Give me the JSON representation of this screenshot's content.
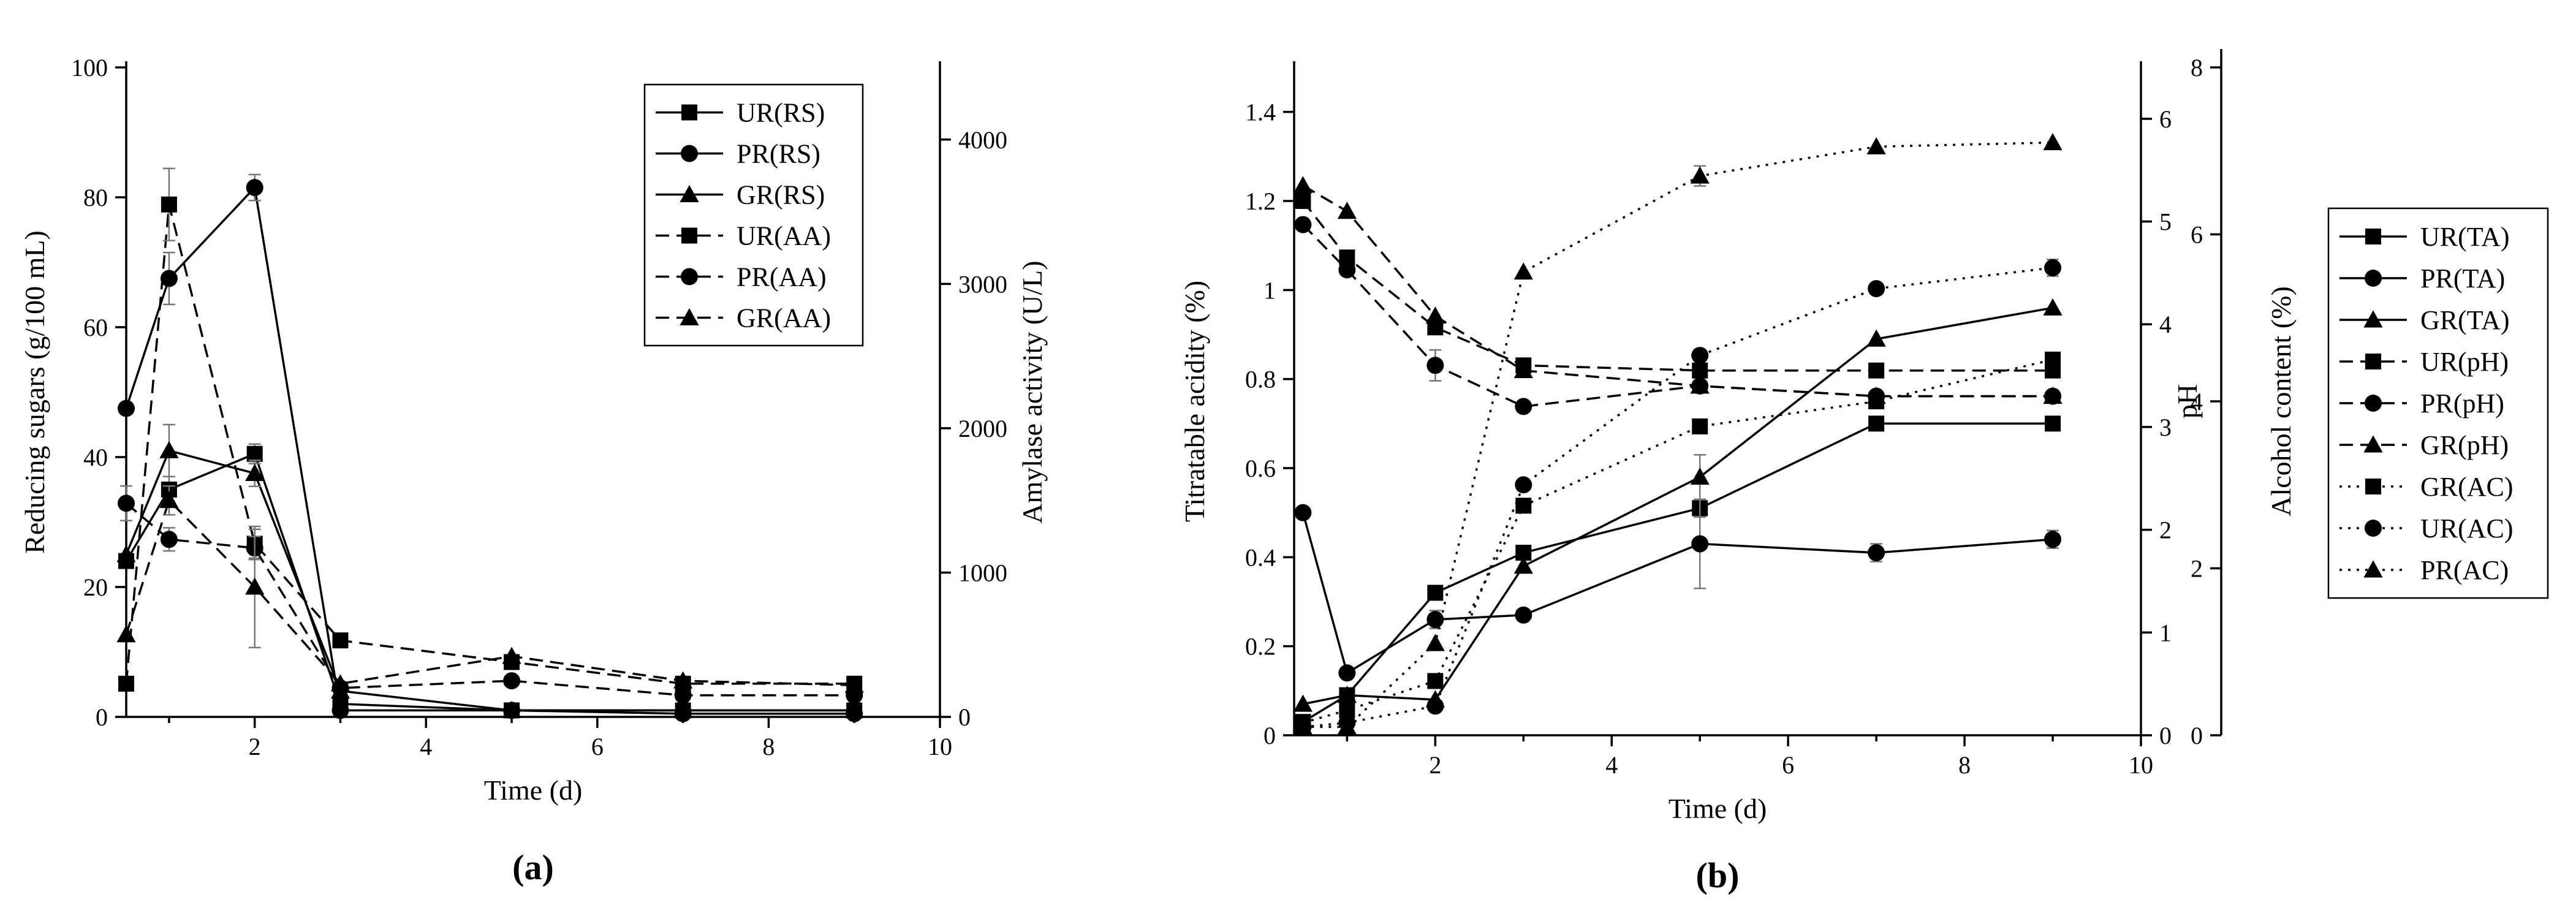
{
  "chart_data": [
    {
      "type": "line",
      "panel_label": "(a)",
      "xlabel": "Time (d)",
      "ylabel": "Reducing sugars (g/100 mL)",
      "y2label": "Amylase activity (U/L)",
      "xlim": [
        0.5,
        10
      ],
      "xticks": [
        2,
        4,
        6,
        8,
        10
      ],
      "ylim": [
        0,
        100
      ],
      "yticks": [
        0,
        20,
        40,
        60,
        80,
        100
      ],
      "y2lim": [
        0,
        4500
      ],
      "y2ticks": [
        0,
        1000,
        2000,
        3000,
        4000
      ],
      "legend_position": "top-right",
      "series": [
        {
          "name": "UR(RS)",
          "axis": "y",
          "style": "solid",
          "marker": "square",
          "x": [
            0.5,
            1,
            2,
            3,
            5,
            7,
            9
          ],
          "values": [
            24,
            35,
            40.5,
            2,
            1,
            1,
            1
          ],
          "errors": [
            0,
            2,
            1.5,
            0.5,
            0,
            0,
            0
          ]
        },
        {
          "name": "PR(RS)",
          "axis": "y",
          "style": "solid",
          "marker": "circle",
          "x": [
            0.5,
            1,
            2,
            3,
            5,
            7,
            9
          ],
          "values": [
            47.5,
            67.5,
            81.5,
            1,
            1,
            0.5,
            0.5
          ],
          "errors": [
            0,
            4,
            2,
            0,
            0,
            0,
            0
          ]
        },
        {
          "name": "GR(RS)",
          "axis": "y",
          "style": "solid",
          "marker": "triangle",
          "x": [
            0.5,
            1,
            2,
            3,
            5,
            7,
            9
          ],
          "values": [
            25,
            41,
            37.5,
            4,
            1,
            1,
            1
          ],
          "errors": [
            0,
            4,
            2,
            0,
            0,
            0,
            0
          ]
        },
        {
          "name": "UR(AA)",
          "axis": "y2",
          "style": "dashed",
          "marker": "square",
          "x": [
            0.5,
            1,
            2,
            3,
            5,
            7,
            9
          ],
          "values": [
            230,
            3550,
            1200,
            530,
            380,
            230,
            230
          ],
          "errors": [
            0,
            250,
            100,
            0,
            0,
            0,
            0
          ]
        },
        {
          "name": "PR(AA)",
          "axis": "y2",
          "style": "dashed",
          "marker": "circle",
          "x": [
            0.5,
            1,
            2,
            3,
            5,
            7,
            9
          ],
          "values": [
            1480,
            1230,
            1170,
            200,
            250,
            150,
            150
          ],
          "errors": [
            120,
            80,
            80,
            0,
            0,
            0,
            0
          ]
        },
        {
          "name": "GR(AA)",
          "axis": "y2",
          "style": "dashed",
          "marker": "triangle",
          "x": [
            0.5,
            1,
            2,
            3,
            5,
            7,
            9
          ],
          "values": [
            570,
            1500,
            900,
            230,
            420,
            250,
            220
          ],
          "errors": [
            0,
            100,
            420,
            0,
            0,
            0,
            0
          ]
        }
      ]
    },
    {
      "type": "line",
      "panel_label": "(b)",
      "xlabel": "Time (d)",
      "ylabel": "Titratable acidity (%)",
      "y2label": "pH",
      "y3label": "Alcohol content (%)",
      "xlim": [
        0.4,
        10
      ],
      "xticks": [
        2,
        4,
        6,
        8,
        10
      ],
      "ylim": [
        0,
        1.5
      ],
      "yticks": [
        0.0,
        0.2,
        0.4,
        0.6,
        0.8,
        1.0,
        1.2,
        1.4
      ],
      "y2lim": [
        0,
        6.5
      ],
      "y2ticks": [
        0,
        1,
        2,
        3,
        4,
        5,
        6
      ],
      "y3lim": [
        0,
        8
      ],
      "y3ticks": [
        0,
        2,
        4,
        6,
        8
      ],
      "legend_position": "right",
      "series": [
        {
          "name": "UR(TA)",
          "axis": "y",
          "style": "solid",
          "marker": "square",
          "x": [
            0.5,
            1,
            2,
            3,
            5,
            7,
            9
          ],
          "values": [
            0.03,
            0.09,
            0.32,
            0.41,
            0.51,
            0.7,
            0.7
          ],
          "errors": [
            0,
            0,
            0,
            0,
            0.02,
            0,
            0
          ]
        },
        {
          "name": "PR(TA)",
          "axis": "y",
          "style": "solid",
          "marker": "circle",
          "x": [
            0.5,
            1,
            2,
            3,
            5,
            7,
            9
          ],
          "values": [
            0.5,
            0.14,
            0.26,
            0.27,
            0.43,
            0.41,
            0.44
          ],
          "errors": [
            0,
            0,
            0.02,
            0.01,
            0.1,
            0.02,
            0.02
          ]
        },
        {
          "name": "GR(TA)",
          "axis": "y",
          "style": "solid",
          "marker": "triangle",
          "x": [
            0.5,
            1,
            2,
            3,
            5,
            7,
            9
          ],
          "values": [
            0.07,
            0.09,
            0.08,
            0.38,
            0.58,
            0.89,
            0.96
          ],
          "errors": [
            0,
            0,
            0,
            0,
            0.05,
            0,
            0
          ]
        },
        {
          "name": "UR(pH)",
          "axis": "y2",
          "style": "dashed",
          "marker": "square",
          "x": [
            0.5,
            1,
            2,
            3,
            5,
            7,
            9
          ],
          "values": [
            5.2,
            4.65,
            3.97,
            3.6,
            3.55,
            3.55,
            3.55
          ],
          "errors": [
            0,
            0,
            0,
            0,
            0,
            0,
            0
          ]
        },
        {
          "name": "PR(pH)",
          "axis": "y2",
          "style": "dashed",
          "marker": "circle",
          "x": [
            0.5,
            1,
            2,
            3,
            5,
            7,
            9
          ],
          "values": [
            4.97,
            4.53,
            3.6,
            3.2,
            3.4,
            3.3,
            3.3
          ],
          "errors": [
            0,
            0,
            0.15,
            0,
            0,
            0,
            0
          ]
        },
        {
          "name": "GR(pH)",
          "axis": "y2",
          "style": "dashed",
          "marker": "triangle",
          "x": [
            0.5,
            1,
            2,
            3,
            5,
            7,
            9
          ],
          "values": [
            5.35,
            5.1,
            4.08,
            3.55,
            3.4,
            3.3,
            3.3
          ],
          "errors": [
            0,
            0,
            0,
            0,
            0,
            0,
            0
          ]
        },
        {
          "name": "GR(AC)",
          "axis": "y3",
          "style": "dotted",
          "marker": "square",
          "x": [
            0.5,
            1,
            2,
            3,
            5,
            7,
            9
          ],
          "values": [
            0.15,
            0.3,
            0.65,
            2.75,
            3.7,
            4.0,
            4.5
          ],
          "errors": [
            0,
            0,
            0,
            0,
            0,
            0,
            0
          ]
        },
        {
          "name": "UR(AC)",
          "axis": "y3",
          "style": "dotted",
          "marker": "circle",
          "x": [
            0.5,
            1,
            2,
            3,
            5,
            7,
            9
          ],
          "values": [
            0.1,
            0.15,
            0.35,
            3.0,
            4.55,
            5.35,
            5.6
          ],
          "errors": [
            0,
            0,
            0,
            0,
            0,
            0.05,
            0.1
          ]
        },
        {
          "name": "PR(AC)",
          "axis": "y3",
          "style": "dotted",
          "marker": "triangle",
          "x": [
            0.5,
            1,
            2,
            3,
            5,
            7,
            9
          ],
          "values": [
            0.1,
            0.1,
            1.1,
            5.55,
            6.7,
            7.05,
            7.1
          ],
          "errors": [
            0,
            0,
            0,
            0,
            0.12,
            0,
            0
          ]
        }
      ]
    }
  ]
}
